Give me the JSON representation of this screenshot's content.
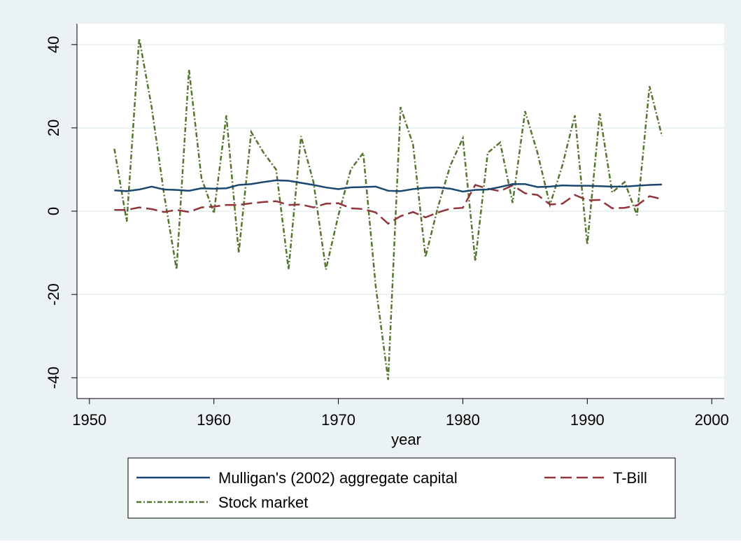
{
  "chart_data": {
    "type": "line",
    "x": [
      1952,
      1953,
      1954,
      1955,
      1956,
      1957,
      1958,
      1959,
      1960,
      1961,
      1962,
      1963,
      1964,
      1965,
      1966,
      1967,
      1968,
      1969,
      1970,
      1971,
      1972,
      1973,
      1974,
      1975,
      1976,
      1977,
      1978,
      1979,
      1980,
      1981,
      1982,
      1983,
      1984,
      1985,
      1986,
      1987,
      1988,
      1989,
      1990,
      1991,
      1992,
      1993,
      1994,
      1995,
      1996
    ],
    "xlabel": "year",
    "xlim": [
      1949,
      2001
    ],
    "xticks": [
      1950,
      1960,
      1970,
      1980,
      1990,
      2000
    ],
    "ylim": [
      -45,
      45
    ],
    "yticks": [
      -40,
      -20,
      0,
      20,
      40
    ],
    "grid": true,
    "series": [
      {
        "name": "Mulligan's (2002) aggregate capital",
        "color": "#1a476f",
        "dash": "none",
        "values": [
          5,
          4.8,
          5.2,
          5.9,
          5.2,
          5.1,
          4.9,
          5.5,
          5.4,
          5.5,
          6.3,
          6.5,
          7,
          7.4,
          7.3,
          6.8,
          6.3,
          5.7,
          5.3,
          5.7,
          5.8,
          5.9,
          4.9,
          4.8,
          5.3,
          5.6,
          5.7,
          5.4,
          4.7,
          5.1,
          5.2,
          5.8,
          6.5,
          6.5,
          5.8,
          5.9,
          6.2,
          6.1,
          6.1,
          6,
          5.9,
          5.9,
          6.1,
          6.3,
          6.4
        ]
      },
      {
        "name": "T-Bill",
        "color": "#90353b",
        "dash": "16 7",
        "values": [
          0.3,
          0.3,
          0.9,
          0.5,
          -0.2,
          0.3,
          -0.2,
          0.9,
          1.1,
          1.5,
          1.5,
          1.9,
          2.2,
          2.4,
          1.5,
          1.6,
          0.9,
          1.8,
          1.9,
          0.7,
          0.5,
          -0.3,
          -3,
          -1.2,
          -0.2,
          -1.5,
          -0.3,
          0.6,
          0.8,
          6.3,
          5.4,
          4.8,
          6.2,
          4.3,
          3.9,
          1.6,
          1.8,
          3.9,
          2.6,
          2.7,
          0.7,
          0.8,
          1.4,
          3.6,
          2.9
        ]
      },
      {
        "name": "Stock market",
        "color": "#55752f",
        "dash": "7 3 2 3",
        "values": [
          15,
          -2.5,
          41.5,
          25,
          4,
          -14,
          34,
          8,
          -0.5,
          23,
          -10,
          19,
          14,
          10,
          -14,
          18,
          7,
          -14,
          -1,
          10,
          14,
          -18,
          -40.5,
          25,
          16,
          -11,
          1,
          11,
          17.5,
          -12,
          14,
          16.5,
          2,
          24,
          14,
          1.5,
          11,
          23,
          -8,
          23.5,
          4.5,
          7,
          -1,
          30,
          18
        ]
      }
    ]
  }
}
